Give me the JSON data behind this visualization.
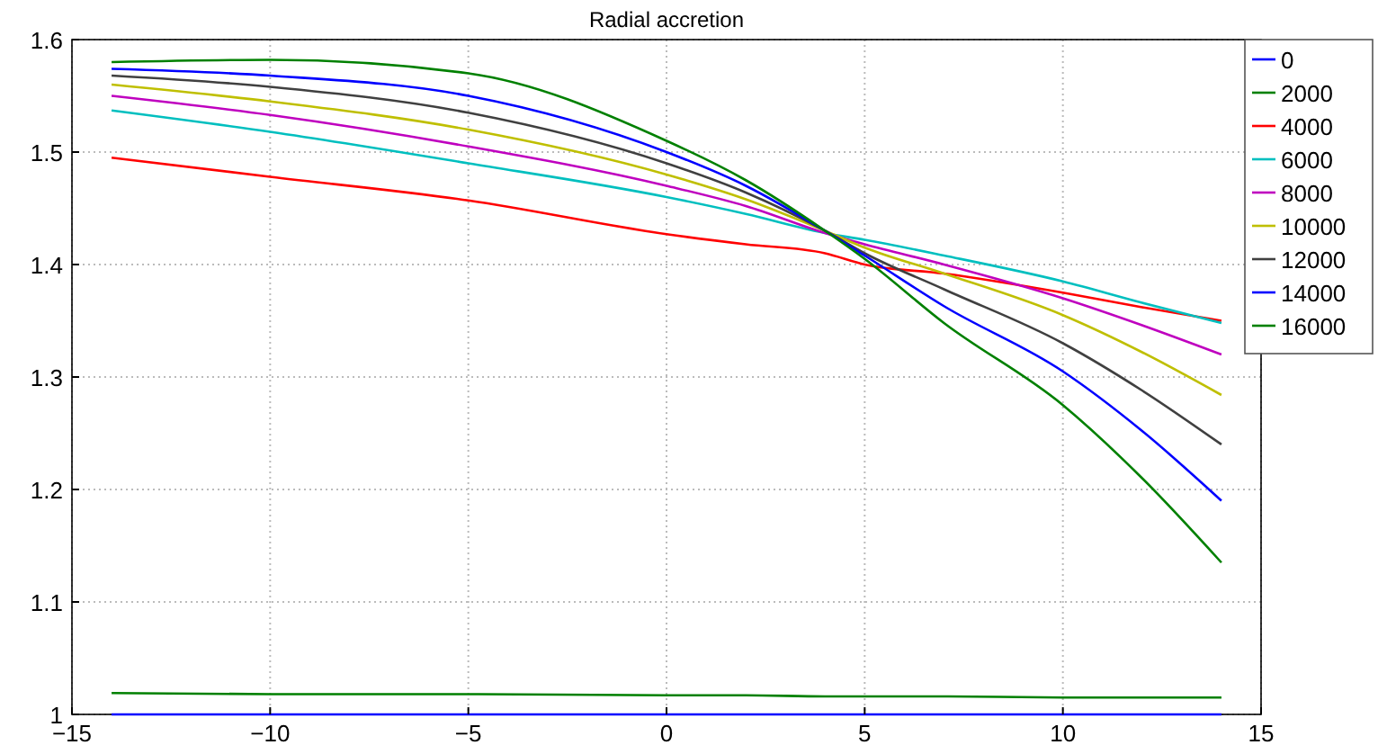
{
  "chart_data": {
    "type": "line",
    "title": "Radial accretion",
    "x": [
      -14,
      -10,
      -5,
      0,
      2,
      4,
      5,
      7,
      10,
      12,
      14
    ],
    "xlim": [
      -15,
      15
    ],
    "xticks": [
      {
        "value": -15,
        "label": "−15"
      },
      {
        "value": -10,
        "label": "−10"
      },
      {
        "value": -5,
        "label": "−5"
      },
      0,
      5,
      10,
      15
    ],
    "ylim": [
      1,
      1.6
    ],
    "yticks": [
      1,
      1.1,
      1.2,
      1.3,
      1.4,
      1.5,
      1.6
    ],
    "grid": true,
    "legend": "top right",
    "marker": "none",
    "line_style": "solid",
    "series": [
      {
        "name": "0",
        "color": "#0000ff",
        "values": [
          1,
          1,
          1,
          1,
          1,
          1,
          1,
          1,
          1,
          1,
          1
        ]
      },
      {
        "name": "2000",
        "color": "#008000",
        "values": [
          1.019,
          1.018,
          1.018,
          1.017,
          1.017,
          1.016,
          1.016,
          1.016,
          1.015,
          1.015,
          1.015
        ]
      },
      {
        "name": "4000",
        "color": "#ff0000",
        "values": [
          1.495,
          1.478,
          1.457,
          1.427,
          1.418,
          1.41,
          1.4,
          1.392,
          1.375,
          1.362,
          1.35
        ]
      },
      {
        "name": "6000",
        "color": "#00bfbf",
        "values": [
          1.537,
          1.518,
          1.49,
          1.46,
          1.445,
          1.428,
          1.422,
          1.408,
          1.385,
          1.366,
          1.348
        ]
      },
      {
        "name": "8000",
        "color": "#bf00bf",
        "values": [
          1.55,
          1.533,
          1.505,
          1.47,
          1.452,
          1.428,
          1.418,
          1.4,
          1.37,
          1.346,
          1.32
        ]
      },
      {
        "name": "10000",
        "color": "#bfbf00",
        "values": [
          1.56,
          1.545,
          1.52,
          1.48,
          1.458,
          1.43,
          1.415,
          1.392,
          1.355,
          1.322,
          1.284
        ]
      },
      {
        "name": "12000",
        "color": "#404040",
        "values": [
          1.568,
          1.558,
          1.535,
          1.49,
          1.464,
          1.43,
          1.41,
          1.378,
          1.33,
          1.288,
          1.24
        ]
      },
      {
        "name": "14000",
        "color": "#0000ff",
        "values": [
          1.574,
          1.568,
          1.55,
          1.5,
          1.47,
          1.43,
          1.408,
          1.363,
          1.305,
          1.252,
          1.19
        ]
      },
      {
        "name": "16000",
        "color": "#008000",
        "values": [
          1.58,
          1.582,
          1.57,
          1.51,
          1.475,
          1.43,
          1.405,
          1.348,
          1.275,
          1.21,
          1.135
        ]
      }
    ]
  }
}
